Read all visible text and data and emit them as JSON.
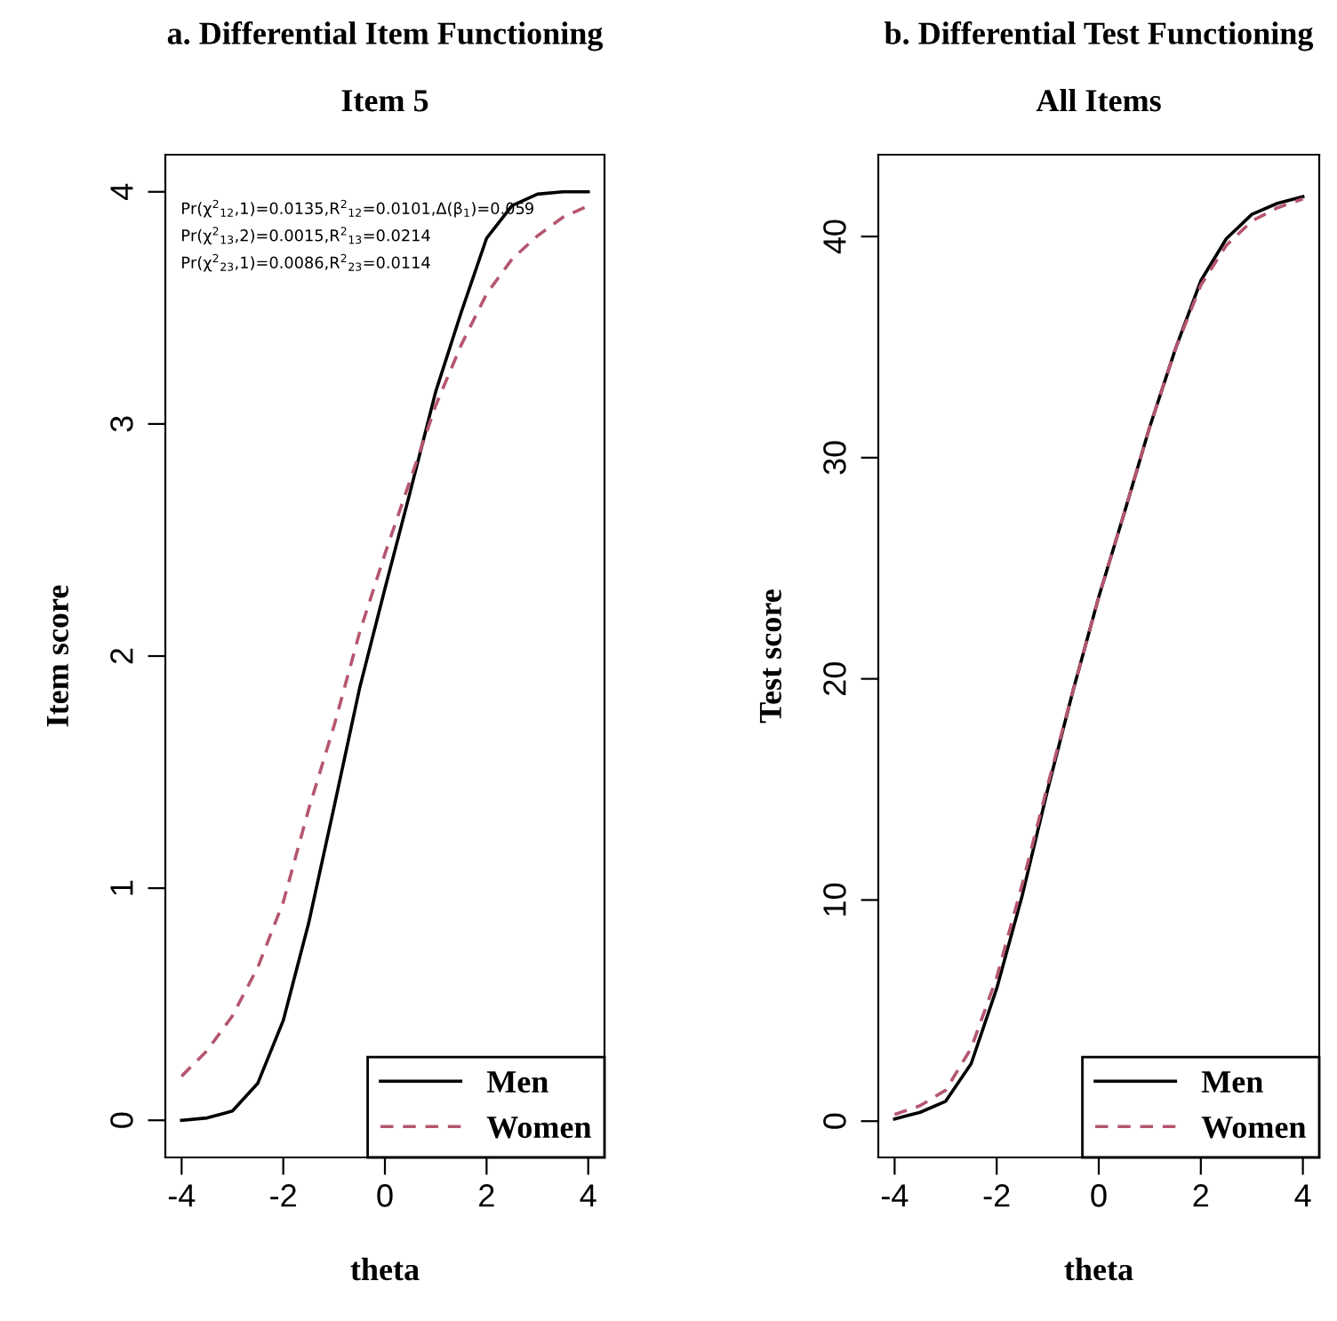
{
  "chart_data": [
    {
      "type": "line",
      "title": "a. Differential Item Functioning",
      "subtitle": "Item 5",
      "xlabel": "theta",
      "ylabel": "Item score",
      "x": [
        -4,
        -3.5,
        -3,
        -2.5,
        -2,
        -1.5,
        -1,
        -0.5,
        0,
        0.5,
        1,
        1.5,
        2,
        2.5,
        3,
        3.5,
        4
      ],
      "series": [
        {
          "name": "Men",
          "color": "#000000",
          "line_style": "solid",
          "values": [
            0,
            0.01,
            0.04,
            0.16,
            0.43,
            0.85,
            1.35,
            1.86,
            2.29,
            2.71,
            3.14,
            3.48,
            3.8,
            3.94,
            3.99,
            4,
            4
          ]
        },
        {
          "name": "Women",
          "color": "#b5566f",
          "line_style": "dashed",
          "values": [
            0.19,
            0.3,
            0.45,
            0.66,
            0.94,
            1.34,
            1.7,
            2.1,
            2.44,
            2.76,
            3.08,
            3.34,
            3.56,
            3.71,
            3.81,
            3.89,
            3.94
          ]
        }
      ],
      "annotations": [
        "Pr(χ$^{2}$$_{12}$,1)=0.0135,R$^{2}$$_{12}$=0.0101,Δ(β$_{1}$)=0.059",
        "Pr(χ$^{2}$$_{13}$,2)=0.0015,R$^{2}$$_{13}$=0.0214",
        "Pr(χ$^{2}$$_{23}$,1)=0.0086,R$^{2}$$_{23}$=0.0114"
      ],
      "xlim": [
        -4.32,
        4.32
      ],
      "ylim": [
        -0.16,
        4.16
      ],
      "xticks": [
        -4,
        -2,
        0,
        2,
        4
      ],
      "yticks": [
        0,
        1,
        2,
        3,
        4
      ],
      "grid": false,
      "legend": "bottom right"
    },
    {
      "type": "line",
      "title": "b. Differential Test Functioning",
      "subtitle": "All Items",
      "xlabel": "theta",
      "ylabel": "Test score",
      "x": [
        -4,
        -3.5,
        -3,
        -2.5,
        -2,
        -1.5,
        -1,
        -0.5,
        0,
        0.5,
        1,
        1.5,
        2,
        2.5,
        3,
        3.5,
        4
      ],
      "series": [
        {
          "name": "Men",
          "color": "#000000",
          "line_style": "solid",
          "values": [
            0.1,
            0.4,
            0.9,
            2.6,
            6.0,
            10.2,
            15.0,
            19.5,
            23.7,
            27.5,
            31.4,
            34.9,
            38.0,
            39.9,
            41.0,
            41.5,
            41.8
          ]
        },
        {
          "name": "Women",
          "color": "#b5566f",
          "line_style": "dashed",
          "values": [
            0.3,
            0.7,
            1.4,
            3.3,
            6.5,
            10.7,
            15.2,
            19.5,
            23.7,
            27.5,
            31.4,
            34.9,
            37.8,
            39.6,
            40.7,
            41.3,
            41.7
          ]
        }
      ],
      "xlim": [
        -4.32,
        4.32
      ],
      "ylim": [
        -1.64,
        43.7
      ],
      "xticks": [
        -4,
        -2,
        0,
        2,
        4
      ],
      "yticks": [
        0,
        10,
        20,
        30,
        40
      ],
      "grid": false,
      "legend": "bottom right"
    }
  ]
}
